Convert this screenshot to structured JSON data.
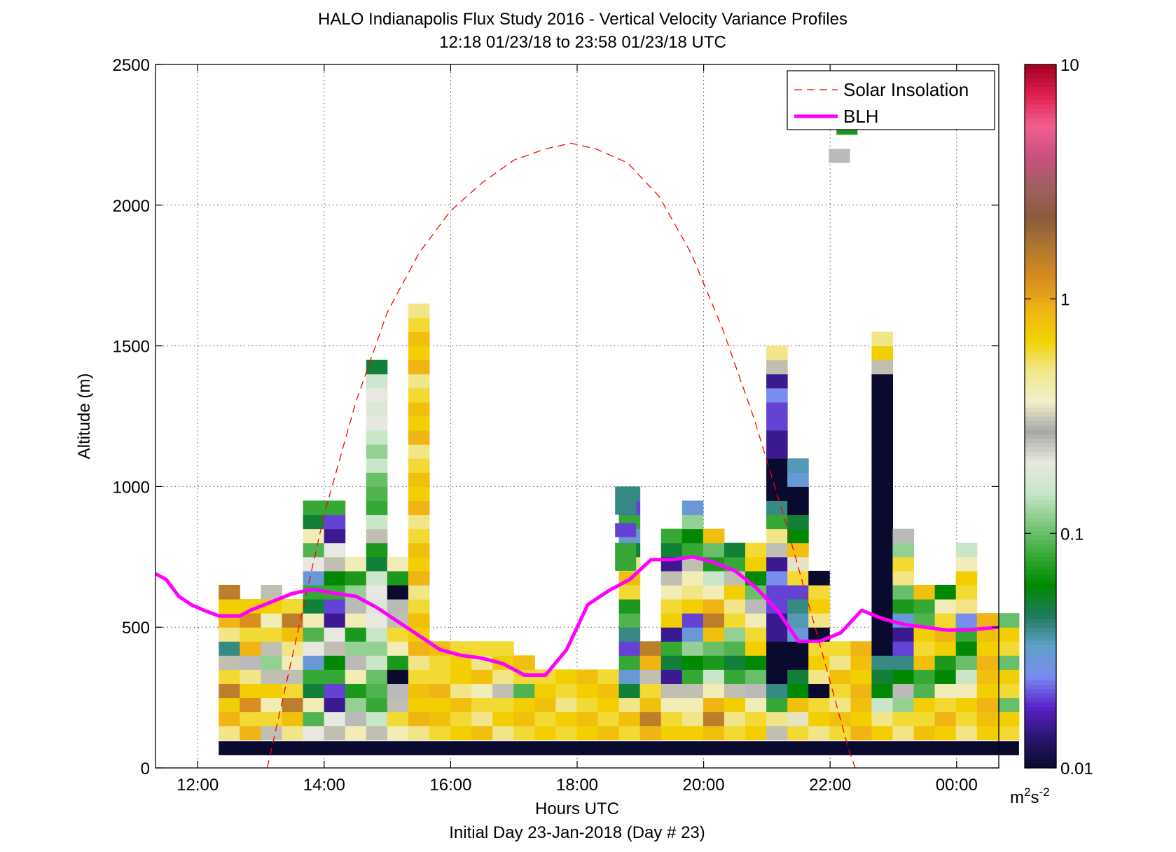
{
  "chart_data": {
    "type": "heatmap",
    "title": "HALO Indianapolis Flux Study 2016 - Vertical Velocity Variance Profiles",
    "subtitle": "12:18 01/23/18 to 23:58 01/23/18  UTC",
    "xlabel": "Hours UTC",
    "xlabel2": "Initial Day 23-Jan-2018 (Day # 23)",
    "ylabel": "Altitude (m)",
    "xlim": [
      11.333,
      24.667
    ],
    "ylim": [
      0,
      2500
    ],
    "x_ticks": [
      12,
      14,
      16,
      18,
      20,
      22,
      24
    ],
    "x_tick_labels": [
      "12:00",
      "14:00",
      "16:00",
      "18:00",
      "20:00",
      "22:00",
      "00:00"
    ],
    "y_ticks": [
      0,
      500,
      1000,
      1500,
      2000,
      2500
    ],
    "y_tick_labels": [
      "0",
      "500",
      "1000",
      "1500",
      "2000",
      "2500"
    ],
    "grid": true,
    "legend": {
      "position": "top-right",
      "entries": [
        {
          "label": "Solar Insolation",
          "color": "#ff0000",
          "style": "dashed"
        },
        {
          "label": "BLH",
          "color": "#ff00ff",
          "style": "solid"
        }
      ]
    },
    "colorbar": {
      "scale": "log",
      "range": [
        0.01,
        10
      ],
      "tick_values": [
        0.01,
        0.1,
        1,
        10
      ],
      "tick_labels": [
        "0.01",
        "0.1",
        "1",
        "10"
      ],
      "unit_base": "m",
      "unit_sup1": "2",
      "unit_mid": "s",
      "unit_sup2": "-2",
      "colors": [
        "#0a0a2e",
        "#2a1570",
        "#5a22c8",
        "#7a8cf0",
        "#5fa0c8",
        "#1e7a5a",
        "#008a00",
        "#3aaa3a",
        "#80c880",
        "#c8e6c8",
        "#e8e8e0",
        "#a8a8a8",
        "#f2efc8",
        "#f2e68c",
        "#f2d200",
        "#f0b414",
        "#d88c20",
        "#b07830",
        "#8a5a3c",
        "#a06060",
        "#c85080",
        "#f06090",
        "#e02050",
        "#a00020"
      ]
    },
    "heatmap": {
      "x_start": 12.333,
      "dx": 0.333,
      "y_start": 100,
      "dy": 50,
      "columns": [
        {
          "top": 650,
          "vals": [
            0.5,
            0.9,
            0.7,
            1.5,
            0.6,
            0.3,
            0.04
          ]
        },
        {
          "top": 600,
          "vals": [
            0.9,
            0.6,
            1.2,
            0.7,
            0.5,
            0.25
          ]
        },
        {
          "top": 650,
          "vals": [
            0.3,
            0.6,
            0.4,
            0.7,
            0.3,
            0.12
          ]
        },
        {
          "top": 600,
          "vals": [
            0.5,
            0.8,
            1.5,
            0.6,
            0.3,
            0.4
          ]
        },
        {
          "top": 950,
          "vals": [
            0.2,
            0.09,
            0.4,
            0.05,
            0.08,
            0.03
          ]
        },
        {
          "top": 950,
          "vals": [
            0.3,
            0.2,
            0.015,
            0.02,
            0.08,
            0.06
          ]
        },
        {
          "top": 750,
          "vals": [
            0.4,
            0.25,
            0.12,
            0.07
          ]
        },
        {
          "top": 1450,
          "vals": [
            0.3,
            0.15,
            0.08,
            0.09,
            0.1,
            0.15,
            0.12,
            0.15,
            0.2,
            0.18,
            0.2,
            0.16,
            0.05,
            0.07
          ]
        },
        {
          "top": 750,
          "vals": [
            0.4,
            0.6,
            0.3,
            0.25,
            0.01,
            0.07
          ]
        },
        {
          "top": 1650,
          "vals": [
            0.5,
            0.9,
            0.7,
            0.8,
            0.6
          ]
        },
        {
          "top": 450,
          "vals": [
            0.6,
            0.8,
            0.7,
            0.9,
            0.6
          ]
        },
        {
          "top": 450,
          "vals": [
            0.7,
            0.6,
            0.8,
            0.5,
            0.7
          ]
        },
        {
          "top": 450,
          "vals": [
            0.8,
            0.5,
            0.6,
            0.4
          ]
        },
        {
          "top": 450,
          "vals": [
            0.5,
            0.7,
            0.6,
            0.3
          ]
        },
        {
          "top": 400,
          "vals": [
            0.6,
            0.8,
            0.7,
            0.09
          ]
        },
        {
          "top": 350,
          "vals": [
            0.7,
            0.6,
            0.8
          ]
        },
        {
          "top": 350,
          "vals": [
            0.6,
            0.7,
            0.5
          ]
        },
        {
          "top": 350,
          "vals": [
            0.7,
            0.8,
            0.6
          ]
        },
        {
          "top": 350,
          "vals": [
            0.8,
            0.6,
            0.7
          ]
        },
        {
          "top": 1000,
          "vals": [
            0.6,
            0.8,
            0.5,
            0.05,
            0.03,
            0.08,
            0.02,
            0.04,
            0.09,
            0.07
          ]
        },
        {
          "top": 450,
          "vals": [
            0.9,
            1.5,
            0.8,
            0.6,
            0.3
          ]
        },
        {
          "top": 850,
          "vals": [
            0.7,
            0.6,
            0.4,
            0.3,
            0.015,
            0.05,
            0.08,
            0.015
          ]
        },
        {
          "top": 950,
          "vals": [
            0.7,
            0.5,
            0.4,
            0.3,
            0.08,
            0.06,
            0.12,
            0.03,
            0.02
          ]
        },
        {
          "top": 850,
          "vals": [
            0.8,
            1.5,
            0.9,
            0.4,
            0.15,
            0.07,
            0.1
          ]
        },
        {
          "top": 800,
          "vals": [
            0.6,
            0.5,
            0.7,
            0.3,
            0.08,
            0.05,
            0.09,
            0.12
          ]
        },
        {
          "top": 800,
          "vals": [
            0.7,
            0.6,
            0.4,
            0.25,
            0.1,
            0.06
          ]
        },
        {
          "top": 1500,
          "vals": [
            0.3,
            0.5,
            0.08,
            0.04,
            0.01,
            0.01,
            0.01,
            0.015,
            0.015,
            0.02,
            0.02,
            0.025,
            0.015
          ]
        },
        {
          "top": 1100,
          "vals": [
            0.6,
            0.35,
            0.8,
            0.06,
            0.05,
            0.01,
            0.01,
            0.03,
            0.035,
            0.04,
            0.02
          ]
        },
        {
          "top": 700,
          "vals": [
            0.5,
            0.7,
            0.6,
            0.01
          ]
        },
        {
          "top": 450,
          "vals": [
            0.6,
            0.8,
            0.5
          ]
        },
        {
          "top": 450,
          "vals": [
            0.9,
            0.7,
            0.8
          ]
        },
        {
          "top": 1550,
          "vals": [
            0.7,
            0.5,
            0.15,
            0.06,
            0.05,
            0.04,
            0.01,
            0.01,
            0.01,
            0.01,
            0.01,
            0.01,
            0.01,
            0.01,
            0.01,
            0.01,
            0.01,
            0.01,
            0.01,
            0.01,
            0.01,
            0.01,
            0.01,
            0.01,
            0.01,
            0.01,
            0.3
          ]
        },
        {
          "top": 850,
          "vals": [
            0.5,
            0.6,
            0.12,
            0.25,
            0.06,
            0.04,
            0.02,
            0.015,
            0.03,
            0.07,
            0.1
          ]
        },
        {
          "top": 650,
          "vals": [
            0.8,
            0.6,
            0.7,
            0.09,
            0.08
          ]
        },
        {
          "top": 650,
          "vals": [
            0.7,
            0.9,
            0.6,
            0.4,
            0.06,
            0.07
          ]
        },
        {
          "top": 800,
          "vals": [
            0.5,
            0.6,
            0.7,
            0.4,
            0.15,
            0.1,
            0.06,
            0.08,
            0.025
          ]
        },
        {
          "top": 550,
          "vals": [
            0.7,
            0.8,
            0.9
          ]
        },
        {
          "top": 550,
          "vals": [
            0.6,
            0.7,
            0.1
          ]
        }
      ],
      "extras": [
        {
          "x": 21.98,
          "y1": 2150,
          "y2": 2200,
          "val": 0.25
        },
        {
          "x": 22.1,
          "y1": 2250,
          "y2": 2280,
          "val": 0.07
        },
        {
          "x": 18.6,
          "y1": 900,
          "y2": 1000,
          "val": 0.04
        },
        {
          "x": 18.6,
          "y1": 820,
          "y2": 870,
          "val": 0.02
        },
        {
          "x": 18.6,
          "y1": 700,
          "y2": 800,
          "val": 0.08
        }
      ],
      "bottom_bar": {
        "y1": 45,
        "y2": 95,
        "val": 0.01
      }
    },
    "series": [
      {
        "name": "Solar Insolation",
        "x": [
          13.1,
          13.5,
          14.0,
          14.5,
          15.0,
          15.5,
          16.0,
          16.5,
          17.0,
          17.5,
          17.9,
          18.3,
          18.8,
          19.3,
          19.8,
          20.3,
          20.8,
          21.3,
          21.8,
          22.3,
          22.8
        ],
        "y": [
          0,
          400,
          900,
          1300,
          1620,
          1830,
          1980,
          2080,
          2160,
          2200,
          2220,
          2200,
          2150,
          2030,
          1830,
          1560,
          1240,
          870,
          470,
          60,
          -250
        ]
      },
      {
        "name": "BLH",
        "x": [
          11.333,
          11.5,
          11.7,
          11.9,
          12.1,
          12.333,
          12.667,
          12.833,
          13.167,
          13.5,
          13.833,
          14.167,
          14.5,
          14.833,
          15.167,
          15.5,
          15.833,
          16.167,
          16.5,
          16.833,
          17.167,
          17.5,
          17.833,
          18.167,
          18.5,
          18.833,
          19.167,
          19.5,
          19.833,
          20.167,
          20.5,
          20.833,
          21.167,
          21.5,
          21.833,
          22.167,
          22.5,
          22.833,
          23.167,
          23.5,
          23.833,
          24.167,
          24.667
        ],
        "y": [
          690,
          670,
          610,
          580,
          560,
          540,
          540,
          560,
          590,
          620,
          635,
          620,
          610,
          570,
          520,
          470,
          420,
          400,
          390,
          370,
          330,
          330,
          420,
          580,
          630,
          670,
          740,
          740,
          750,
          730,
          700,
          640,
          560,
          450,
          450,
          480,
          560,
          530,
          510,
          500,
          490,
          490,
          500
        ]
      }
    ]
  }
}
